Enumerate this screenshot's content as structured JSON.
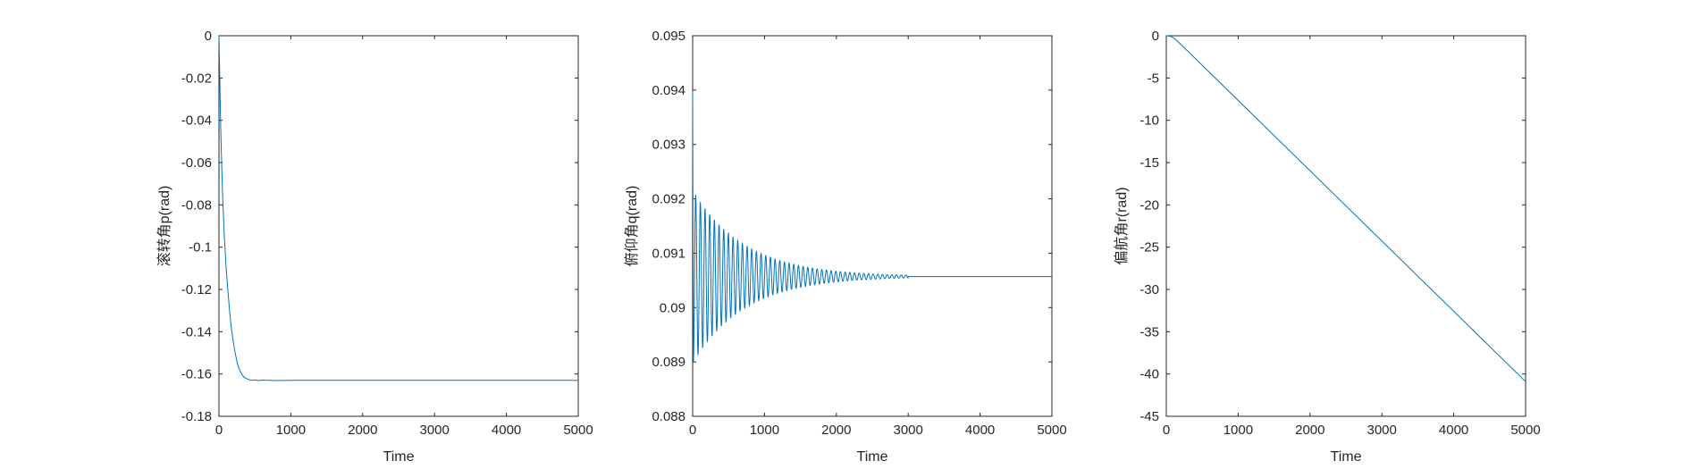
{
  "chart_data": [
    {
      "type": "line",
      "title": "",
      "xlabel": "Time",
      "ylabel": "滚转角p(rad)",
      "xlim": [
        0,
        5000
      ],
      "ylim": [
        -0.18,
        0
      ],
      "x_ticks": [
        0,
        1000,
        2000,
        3000,
        4000,
        5000
      ],
      "y_ticks": [
        0,
        -0.02,
        -0.04,
        -0.06,
        -0.08,
        -0.1,
        -0.12,
        -0.14,
        -0.16,
        -0.18
      ],
      "x_tick_labels": [
        "0",
        "1000",
        "2000",
        "3000",
        "4000",
        "5000"
      ],
      "y_tick_labels": [
        "0",
        "-0.02",
        "-0.04",
        "-0.06",
        "-0.08",
        "-0.1",
        "-0.12",
        "-0.14",
        "-0.16",
        "-0.18"
      ],
      "grid": false,
      "line_color": "#0072BD",
      "series": [
        {
          "x": [
            0,
            25,
            50,
            75,
            100,
            125,
            150,
            175,
            200,
            225,
            250,
            275,
            300,
            325,
            350,
            375,
            400,
            450,
            500,
            550,
            600,
            700,
            800,
            1000,
            1500,
            2000,
            2500,
            3000,
            4000,
            5000
          ],
          "values": [
            0,
            -0.045,
            -0.075,
            -0.095,
            -0.11,
            -0.121,
            -0.131,
            -0.139,
            -0.145,
            -0.15,
            -0.154,
            -0.157,
            -0.159,
            -0.1605,
            -0.1615,
            -0.162,
            -0.1625,
            -0.163,
            -0.1628,
            -0.1631,
            -0.1629,
            -0.163,
            -0.1631,
            -0.163,
            -0.163,
            -0.163,
            -0.163,
            -0.163,
            -0.163,
            -0.163
          ]
        }
      ]
    },
    {
      "type": "line",
      "title": "",
      "xlabel": "Time",
      "ylabel": "俯仰角q(rad)",
      "xlim": [
        0,
        5000
      ],
      "ylim": [
        0.088,
        0.095
      ],
      "x_ticks": [
        0,
        1000,
        2000,
        3000,
        4000,
        5000
      ],
      "y_ticks": [
        0.088,
        0.089,
        0.09,
        0.091,
        0.092,
        0.093,
        0.094,
        0.095
      ],
      "x_tick_labels": [
        "0",
        "1000",
        "2000",
        "3000",
        "4000",
        "5000"
      ],
      "y_tick_labels": [
        "0.088",
        "0.089",
        "0.09",
        "0.091",
        "0.092",
        "0.093",
        "0.094",
        "0.095"
      ],
      "grid": false,
      "line_color": "#0072BD",
      "oscillation": {
        "initial_value": 0.094,
        "steady_value": 0.09057,
        "first_min": 0.089,
        "period": 65,
        "decay_time_constant": 720,
        "settle_time": 3000
      }
    },
    {
      "type": "line",
      "title": "",
      "xlabel": "Time",
      "ylabel": "偏航角r(rad)",
      "xlim": [
        0,
        5000
      ],
      "ylim": [
        -45,
        0
      ],
      "x_ticks": [
        0,
        1000,
        2000,
        3000,
        4000,
        5000
      ],
      "y_ticks": [
        0,
        -5,
        -10,
        -15,
        -20,
        -25,
        -30,
        -35,
        -40,
        -45
      ],
      "x_tick_labels": [
        "0",
        "1000",
        "2000",
        "3000",
        "4000",
        "5000"
      ],
      "y_tick_labels": [
        "0",
        "-5",
        "-10",
        "-15",
        "-20",
        "-25",
        "-30",
        "-35",
        "-40",
        "-45"
      ],
      "grid": false,
      "line_color": "#0072BD",
      "series": [
        {
          "x": [
            0,
            50,
            100,
            150,
            200,
            5000
          ],
          "values": [
            0,
            -0.05,
            -0.25,
            -0.6,
            -1.0,
            -40.9
          ]
        }
      ]
    }
  ]
}
